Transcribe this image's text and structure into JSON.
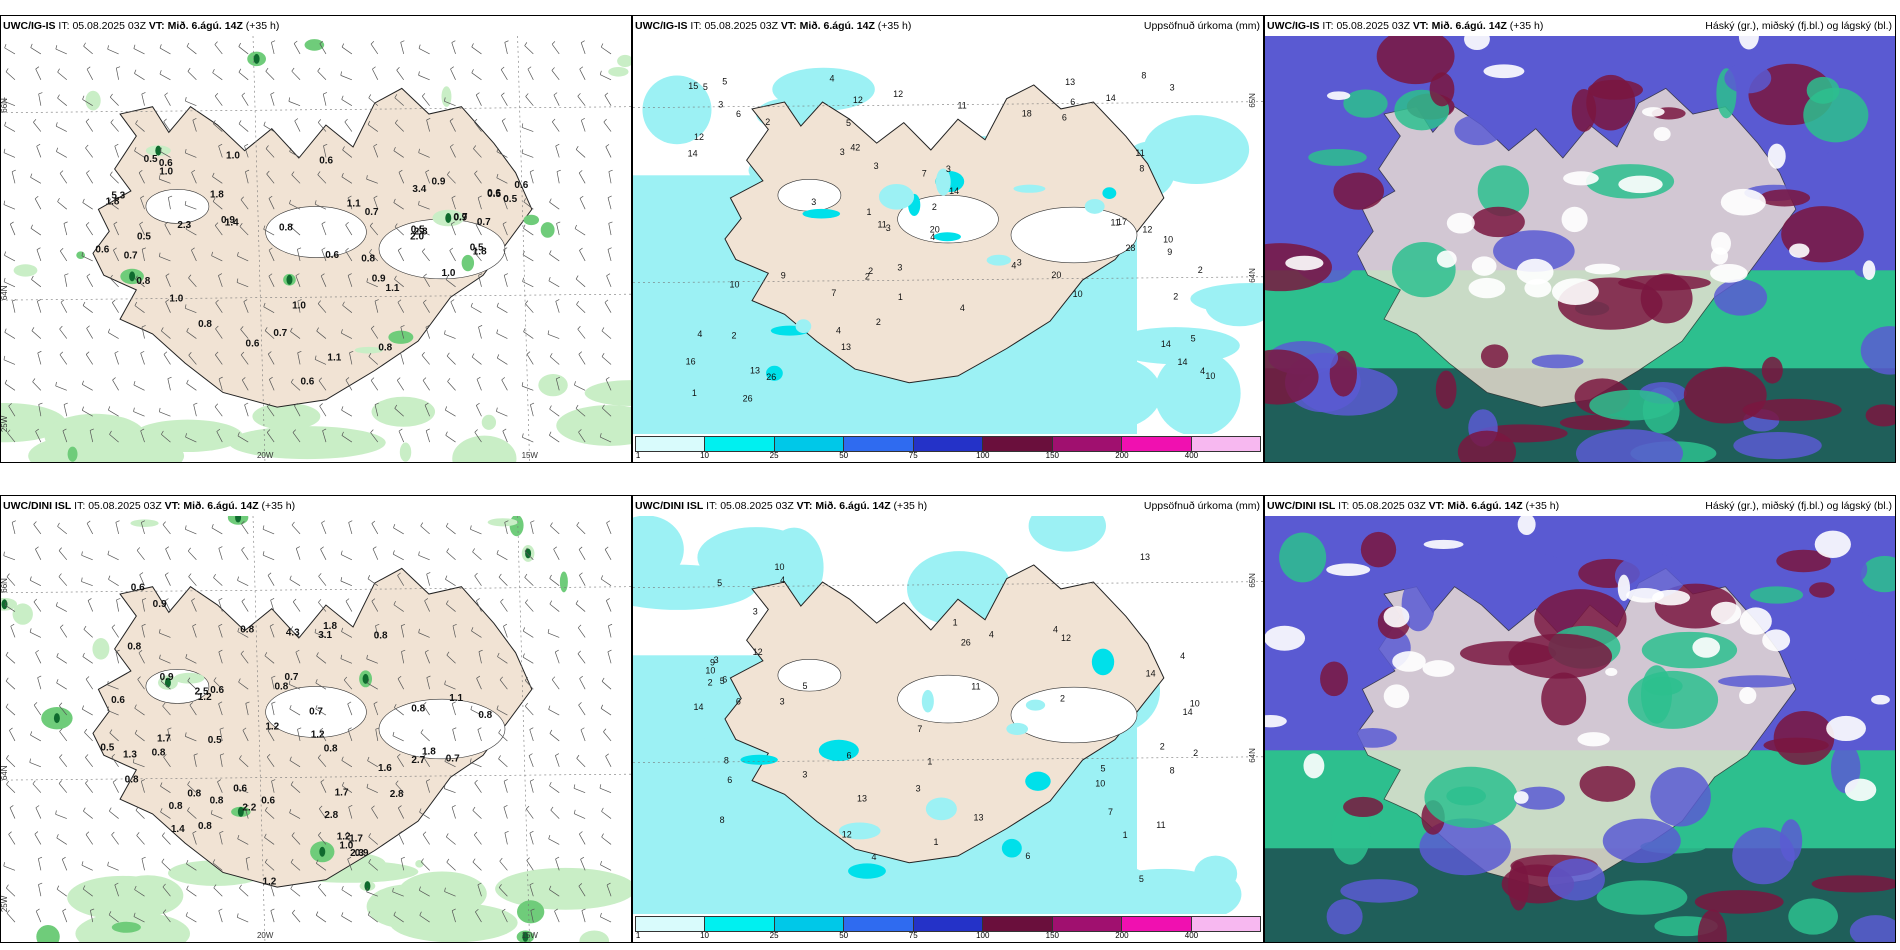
{
  "colors": {
    "land": "#f1e3d4",
    "ocean": "#ffffff",
    "precip_light": "#9cf1f4",
    "precip_mid": "#00e0ea",
    "precip_heavy": "#00c3e6",
    "rain_light": "#c9eec6",
    "rain_mid": "#6fcc7a",
    "rain_dark": "#0f6b2e",
    "cloud_high": "#2dbf8e",
    "cloud_mid": "#5a5ad2",
    "cloud_low": "#7a1640",
    "cloud_dark": "#1f5f5a"
  },
  "panels": [
    {
      "id": "ig-rain",
      "model": "UWC/IG-IS",
      "run_prefix": "IT:",
      "run_time": "05.08.2025 03Z",
      "valid_prefix": "VT:",
      "valid_time": "Mið. 6.ágú. 14Z",
      "lead": "(+35 h)",
      "title_right": "",
      "coord_labels": [
        "66N",
        "64N",
        "20W",
        "15W",
        "25W"
      ],
      "values": [
        "0.5",
        "0.6",
        "1.0",
        "0.5",
        "1.0",
        "0.5",
        "1.0",
        "0.5",
        "0.8",
        "1.4",
        "0.9",
        "0.7",
        "2.0",
        "0.8",
        "1.1",
        "1.1",
        "0.6",
        "0.5",
        "0.6",
        "0.8",
        "0.9",
        "0.6",
        "0.7",
        "0.8",
        "0.9",
        "1.1",
        "0.6",
        "0.9",
        "0.7",
        "0.6",
        "0.5",
        "0.8",
        "1.8",
        "5.3",
        "3.4",
        "1.8",
        "2.8",
        "1.0",
        "0.6",
        "0.7",
        "1.8",
        "2.3",
        "0.7",
        "0.6",
        "1.0"
      ]
    },
    {
      "id": "ig-accum",
      "model": "UWC/IG-IS",
      "run_prefix": "IT:",
      "run_time": "05.08.2025 03Z",
      "valid_prefix": "VT:",
      "valid_time": "Mið. 6.ágú. 14Z",
      "lead": "(+35 h)",
      "title_right": "Uppsöfnuð úrkoma (mm)",
      "coord_labels": [
        "65N",
        "64N"
      ],
      "values": [
        "2",
        "3",
        "4",
        "5",
        "2",
        "3",
        "3",
        "10",
        "11",
        "15",
        "14",
        "12",
        "2",
        "4",
        "7",
        "8",
        "9",
        "14",
        "2",
        "3",
        "3",
        "1",
        "1",
        "2",
        "3",
        "4",
        "6",
        "20",
        "5",
        "4",
        "3",
        "14",
        "11",
        "16",
        "12",
        "17",
        "14",
        "20",
        "18",
        "12",
        "14",
        "13",
        "10",
        "28",
        "26",
        "42",
        "13",
        "11",
        "10",
        "26",
        "13",
        "11",
        "4",
        "2",
        "2",
        "4",
        "5",
        "6",
        "7",
        "8",
        "9",
        "10",
        "12",
        "6",
        "5",
        "3",
        "2",
        "1",
        "4",
        "3"
      ],
      "colorbar": {
        "labels": [
          "1",
          "10",
          "25",
          "50",
          "75",
          "100",
          "150",
          "200",
          "400"
        ],
        "colors": [
          "#d9fbfc",
          "#00f0f0",
          "#00c8e8",
          "#2f6bf0",
          "#2432c8",
          "#6a0f3c",
          "#a0106f",
          "#f010b0",
          "#f7b8f0"
        ]
      }
    },
    {
      "id": "ig-cloud",
      "model": "UWC/IG-IS",
      "run_prefix": "IT:",
      "run_time": "05.08.2025 03Z",
      "valid_prefix": "VT:",
      "valid_time": "Mið. 6.ágú. 14Z",
      "lead": "(+35 h)",
      "title_right": "Háský (gr.), miðský (fj.bl.) og lágský (bl.)"
    },
    {
      "id": "dini-rain",
      "model": "UWC/DINI ISL",
      "run_prefix": "IT:",
      "run_time": "05.08.2025 03Z",
      "valid_prefix": "VT:",
      "valid_time": "Mið. 6.ágú. 14Z",
      "lead": "(+35 h)",
      "title_right": "",
      "coord_labels": [
        "66N",
        "64N",
        "20W",
        "15W",
        "25W"
      ],
      "values": [
        "3.1",
        "2.7",
        "1.7",
        "1.8",
        "1.2",
        "0.7",
        "0.8",
        "4.3",
        "1.1",
        "0.8",
        "0.9",
        "1.6",
        "0.8",
        "1.2",
        "0.8",
        "0.7",
        "0.8",
        "2.5",
        "2.3",
        "0.8",
        "0.6",
        "0.8",
        "1.2",
        "0.6",
        "1.0",
        "0.8",
        "0.6",
        "1.7",
        "0.6",
        "1.8",
        "0.7",
        "0.8",
        "2.8",
        "1.4",
        "1.3",
        "0.5",
        "0.6",
        "0.9",
        "0.8",
        "1.2",
        "2.8",
        "0.8",
        "0.8",
        "0.9",
        "2.2",
        "0.8",
        "1.7",
        "1.2",
        "0.5"
      ]
    },
    {
      "id": "dini-accum",
      "model": "UWC/DINI ISL",
      "run_prefix": "IT:",
      "run_time": "05.08.2025 03Z",
      "valid_prefix": "VT:",
      "valid_time": "Mið. 6.ágú. 14Z",
      "lead": "(+35 h)",
      "title_right": "Uppsöfnuð úrkoma (mm)",
      "coord_labels": [
        "65N",
        "64N"
      ],
      "values": [
        "1",
        "1",
        "5",
        "4",
        "3",
        "6",
        "2",
        "5",
        "8",
        "11",
        "6",
        "10",
        "5",
        "3",
        "4",
        "6",
        "2",
        "1",
        "4",
        "14",
        "13",
        "12",
        "10",
        "6",
        "8",
        "7",
        "5",
        "4",
        "3",
        "13",
        "12",
        "14",
        "26",
        "10",
        "8",
        "6",
        "4",
        "9",
        "11",
        "12",
        "13",
        "14",
        "5",
        "2",
        "3",
        "1",
        "3",
        "2",
        "7",
        "10"
      ],
      "colorbar": {
        "labels": [
          "1",
          "10",
          "25",
          "50",
          "75",
          "100",
          "150",
          "200",
          "400"
        ],
        "colors": [
          "#d9fbfc",
          "#00f0f0",
          "#00c8e8",
          "#2f6bf0",
          "#2432c8",
          "#6a0f3c",
          "#a0106f",
          "#f010b0",
          "#f7b8f0"
        ]
      }
    },
    {
      "id": "dini-cloud",
      "model": "UWC/DINI ISL",
      "run_prefix": "IT:",
      "run_time": "05.08.2025 03Z",
      "valid_prefix": "VT:",
      "valid_time": "Mið. 6.ágú. 14Z",
      "lead": "(+35 h)",
      "title_right": "Háský (gr.), miðský (fj.bl.) og lágský (bl.)"
    }
  ]
}
